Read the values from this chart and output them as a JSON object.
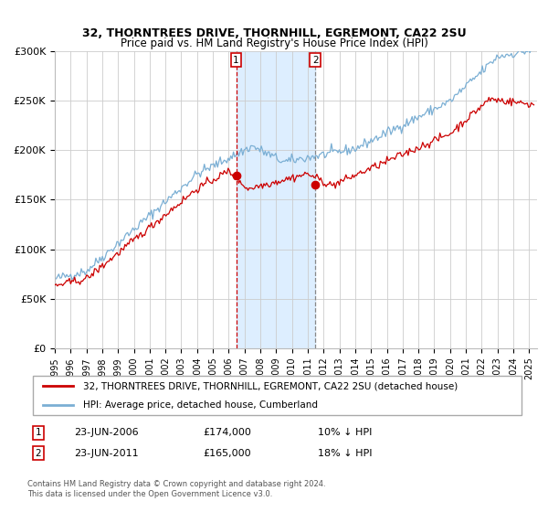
{
  "title": "32, THORNTREES DRIVE, THORNHILL, EGREMONT, CA22 2SU",
  "subtitle": "Price paid vs. HM Land Registry's House Price Index (HPI)",
  "legend_label_red": "32, THORNTREES DRIVE, THORNHILL, EGREMONT, CA22 2SU (detached house)",
  "legend_label_blue": "HPI: Average price, detached house, Cumberland",
  "annotation1_date": "23-JUN-2006",
  "annotation1_price": "£174,000",
  "annotation1_hpi": "10% ↓ HPI",
  "annotation2_date": "23-JUN-2011",
  "annotation2_price": "£165,000",
  "annotation2_hpi": "18% ↓ HPI",
  "footer": "Contains HM Land Registry data © Crown copyright and database right 2024.\nThis data is licensed under the Open Government Licence v3.0.",
  "red_color": "#cc0000",
  "blue_color": "#7bafd4",
  "shade_color": "#ddeeff",
  "ylim": [
    0,
    300000
  ],
  "yticks": [
    0,
    50000,
    100000,
    150000,
    200000,
    250000,
    300000
  ],
  "ytick_labels": [
    "£0",
    "£50K",
    "£100K",
    "£150K",
    "£200K",
    "£250K",
    "£300K"
  ],
  "marker1_x": 2006.47,
  "marker1_y": 174000,
  "marker2_x": 2011.47,
  "marker2_y": 165000,
  "vline1_x": 2006.47,
  "vline2_x": 2011.47,
  "xmin": 1995.0,
  "xmax": 2025.5
}
